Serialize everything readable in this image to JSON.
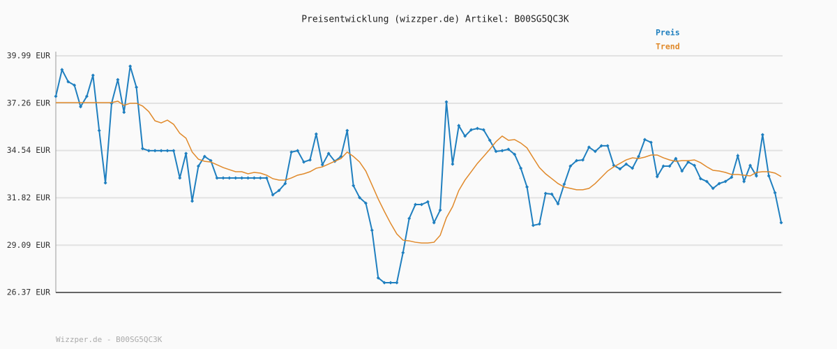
{
  "chart_data": {
    "type": "line",
    "title": "Preisentwicklung (wizzper.de) Artikel: B00SG5QC3K",
    "footer": "Wizzper.de - B00SG5QC3K",
    "legend_position": "top-right",
    "grid": true,
    "ylim": [
      26.37,
      39.99
    ],
    "yticks": [
      {
        "value": 26.37,
        "label": "26.37 EUR"
      },
      {
        "value": 29.09,
        "label": "29.09 EUR"
      },
      {
        "value": 31.82,
        "label": "31.82 EUR"
      },
      {
        "value": 34.54,
        "label": "34.54 EUR"
      },
      {
        "value": 37.26,
        "label": "37.26 EUR"
      },
      {
        "value": 39.99,
        "label": "39.99 EUR"
      }
    ],
    "categories": [
      null,
      null,
      null,
      null,
      null,
      null,
      null,
      null,
      null,
      null,
      null,
      null,
      null,
      null,
      null,
      null,
      null,
      null,
      null,
      null,
      null,
      null,
      null,
      null,
      null,
      null,
      null,
      null,
      null,
      null,
      null,
      null,
      null,
      null,
      null,
      null,
      null,
      null,
      null,
      null,
      null,
      null,
      null,
      null,
      null,
      null,
      null,
      null,
      null,
      null,
      null,
      null,
      null,
      null,
      null,
      null,
      null,
      null,
      null,
      null,
      null,
      null,
      null,
      null,
      null,
      null,
      null,
      null,
      null,
      null,
      null,
      null,
      null,
      null,
      null,
      null,
      null,
      null,
      null,
      null,
      null,
      null,
      null,
      null,
      null,
      null,
      null,
      null,
      null,
      null,
      null,
      null,
      null,
      null,
      null,
      null,
      null,
      null,
      null,
      null,
      null,
      null,
      null,
      null,
      null,
      null,
      null,
      null,
      null,
      null,
      null,
      null,
      null,
      null,
      null,
      null,
      null,
      null
    ],
    "series": [
      {
        "name": "Preis",
        "color": "#1f7fbf",
        "markers": true,
        "values": [
          37.66,
          39.19,
          38.5,
          38.3,
          37.06,
          37.66,
          38.87,
          35.69,
          32.68,
          37.26,
          38.62,
          36.74,
          39.39,
          38.18,
          34.65,
          34.53,
          34.53,
          34.53,
          34.53,
          34.53,
          32.96,
          34.37,
          31.63,
          33.64,
          34.2,
          33.96,
          32.96,
          32.96,
          32.96,
          32.96,
          32.96,
          32.96,
          32.96,
          32.96,
          32.96,
          31.99,
          32.24,
          32.64,
          34.45,
          34.53,
          33.88,
          34.0,
          35.49,
          33.72,
          34.37,
          33.92,
          34.2,
          35.69,
          32.52,
          31.83,
          31.51,
          29.95,
          27.21,
          26.93,
          26.93,
          26.93,
          28.66,
          30.63,
          31.43,
          31.43,
          31.59,
          30.39,
          31.11,
          37.34,
          33.76,
          35.97,
          35.37,
          35.73,
          35.81,
          35.73,
          35.13,
          34.49,
          34.53,
          34.61,
          34.32,
          33.52,
          32.44,
          30.23,
          30.31,
          32.07,
          32.03,
          31.47,
          32.6,
          33.64,
          33.96,
          34.0,
          34.73,
          34.49,
          34.81,
          34.81,
          33.68,
          33.48,
          33.76,
          33.52,
          34.2,
          35.17,
          35.01,
          33.04,
          33.64,
          33.64,
          34.08,
          33.36,
          33.88,
          33.68,
          32.92,
          32.76,
          32.36,
          32.64,
          32.76,
          33.0,
          34.24,
          32.76,
          33.68,
          33.08,
          35.45,
          33.08,
          32.11,
          30.39
        ]
      },
      {
        "name": "Trend",
        "color": "#e0892a",
        "markers": false,
        "values": [
          37.3,
          37.3,
          37.3,
          37.3,
          37.3,
          37.3,
          37.3,
          37.3,
          37.3,
          37.3,
          37.38,
          37.14,
          37.26,
          37.26,
          37.1,
          36.78,
          36.25,
          36.13,
          36.29,
          36.05,
          35.53,
          35.25,
          34.45,
          34.04,
          33.92,
          33.88,
          33.72,
          33.56,
          33.44,
          33.32,
          33.32,
          33.2,
          33.28,
          33.24,
          33.12,
          32.92,
          32.84,
          32.84,
          32.96,
          33.12,
          33.2,
          33.32,
          33.52,
          33.6,
          33.76,
          33.92,
          34.08,
          34.45,
          34.2,
          33.88,
          33.36,
          32.56,
          31.75,
          31.03,
          30.35,
          29.74,
          29.38,
          29.34,
          29.26,
          29.22,
          29.22,
          29.26,
          29.66,
          30.67,
          31.31,
          32.24,
          32.84,
          33.32,
          33.8,
          34.2,
          34.61,
          35.05,
          35.37,
          35.13,
          35.17,
          34.97,
          34.69,
          34.12,
          33.56,
          33.2,
          32.92,
          32.64,
          32.44,
          32.36,
          32.28,
          32.28,
          32.36,
          32.64,
          33.0,
          33.36,
          33.6,
          33.8,
          34.0,
          34.12,
          34.08,
          34.16,
          34.28,
          34.28,
          34.12,
          34.0,
          33.92,
          33.96,
          33.96,
          34.0,
          33.84,
          33.6,
          33.4,
          33.36,
          33.28,
          33.16,
          33.16,
          33.12,
          33.08,
          33.28,
          33.32,
          33.32,
          33.24,
          33.04
        ]
      }
    ]
  }
}
